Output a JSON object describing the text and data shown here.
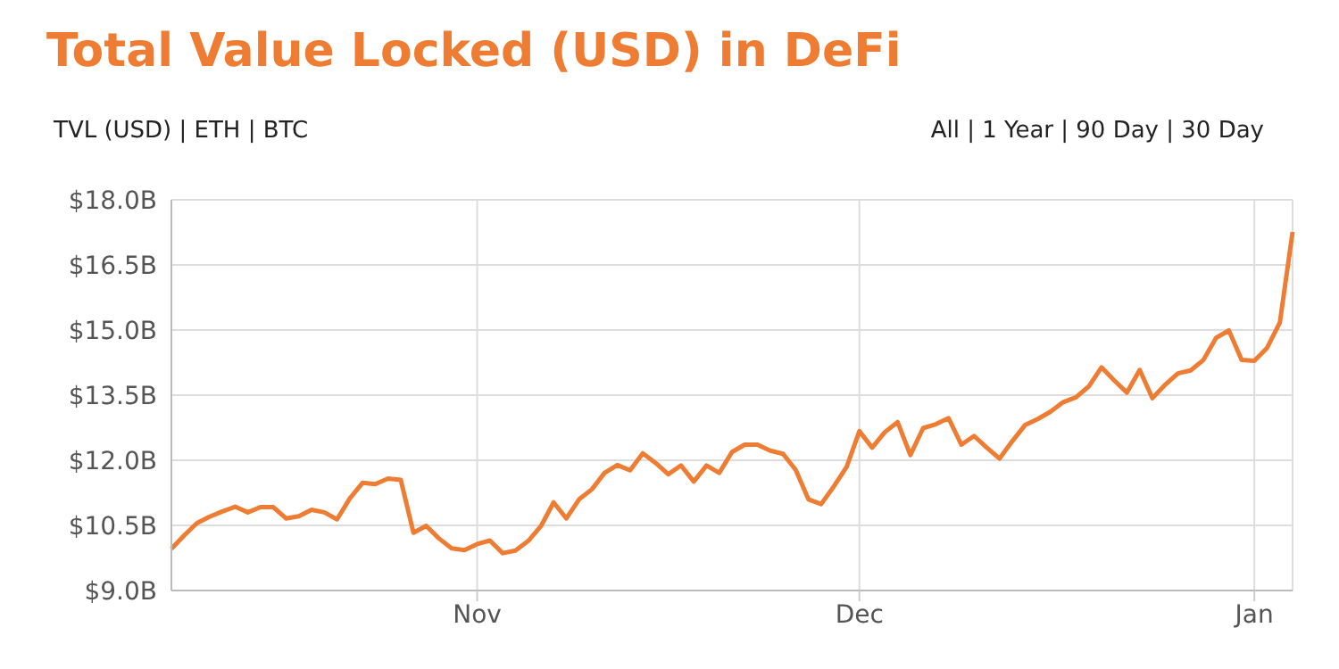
{
  "chart_data": {
    "type": "line",
    "title": "Total Value Locked (USD) in DeFi",
    "annotations": [
      "TVL (USD) | ETH | BTC",
      "All | 1 Year | 90 Day | 30 Day"
    ],
    "categories": [
      null,
      null,
      null,
      null,
      null,
      null,
      null,
      null,
      null,
      null,
      null,
      null,
      null,
      null,
      null,
      null,
      null,
      null,
      null,
      null,
      null,
      null,
      null,
      null,
      "Nov",
      null,
      null,
      null,
      null,
      null,
      null,
      null,
      null,
      null,
      null,
      null,
      null,
      null,
      null,
      null,
      null,
      null,
      null,
      null,
      null,
      null,
      null,
      null,
      null,
      null,
      null,
      null,
      null,
      null,
      "Dec",
      null,
      null,
      null,
      null,
      null,
      null,
      null,
      null,
      null,
      null,
      null,
      null,
      null,
      null,
      null,
      null,
      null,
      null,
      null,
      null,
      null,
      null,
      null,
      null,
      null,
      null,
      null,
      null,
      null,
      null,
      "Jan",
      null,
      null,
      null
    ],
    "series": [
      {
        "color": "#ee7d33",
        "values": [
          9.96,
          10.27,
          10.55,
          10.7,
          10.82,
          10.93,
          10.8,
          10.92,
          10.92,
          10.66,
          10.71,
          10.86,
          10.8,
          10.64,
          11.12,
          11.48,
          11.45,
          11.58,
          11.55,
          10.33,
          10.49,
          10.2,
          9.97,
          9.93,
          10.07,
          10.15,
          9.86,
          9.92,
          10.14,
          10.48,
          11.03,
          10.66,
          11.1,
          11.33,
          11.71,
          11.89,
          11.77,
          12.16,
          11.94,
          11.68,
          11.88,
          11.51,
          11.88,
          11.71,
          12.19,
          12.36,
          12.36,
          12.22,
          12.15,
          11.78,
          11.1,
          10.99,
          11.4,
          11.85,
          12.67,
          12.29,
          12.65,
          12.88,
          12.12,
          12.74,
          12.83,
          12.97,
          12.36,
          12.56,
          12.29,
          12.04,
          12.44,
          12.81,
          12.95,
          13.12,
          13.34,
          13.45,
          13.7,
          14.14,
          13.84,
          13.56,
          14.08,
          13.43,
          13.74,
          14.0,
          14.07,
          14.31,
          14.82,
          14.99,
          14.31,
          14.29,
          14.59,
          15.17,
          17.26
        ]
      }
    ],
    "ylim": [
      9,
      18
    ],
    "yticks": [
      {
        "value": 9,
        "label": "$9.0B"
      },
      {
        "value": 10.5,
        "label": "$10.5B"
      },
      {
        "value": 12,
        "label": "$12.0B"
      },
      {
        "value": 13.5,
        "label": "$13.5B"
      },
      {
        "value": 15,
        "label": "$15.0B"
      },
      {
        "value": 16.5,
        "label": "$16.5B"
      },
      {
        "value": 18,
        "label": "$18.0B"
      }
    ],
    "grid": true,
    "marker": "none",
    "line_style": "solid"
  }
}
